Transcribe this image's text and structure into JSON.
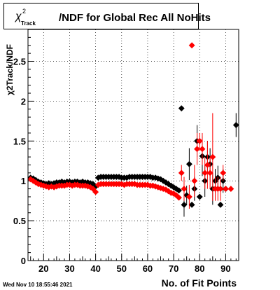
{
  "title": {
    "chi": "χ",
    "sup": "2",
    "sub": "Track",
    "text": "/NDF for Global Rec All NoHits"
  },
  "footer": {
    "date": "Wed Nov 10 18:55:46 2021"
  },
  "colors": {
    "series_black": "#000000",
    "series_red": "#ff0000",
    "frame": "#000000",
    "grid": "#000000"
  },
  "chart_data": {
    "type": "scatter",
    "title": "χ2Track/NDF for Global Rec All NoHits",
    "xlabel": "No. of Fit Points",
    "ylabel": "χ2Track/NDF",
    "xlim": [
      14,
      95
    ],
    "ylim": [
      0,
      2.9
    ],
    "grid": true,
    "x_ticks": [
      20,
      30,
      40,
      50,
      60,
      70,
      80,
      90
    ],
    "y_ticks": [
      0,
      0.5,
      1,
      1.5,
      2,
      2.5
    ],
    "y_tick_labels": [
      "0",
      "0.5",
      "1",
      "1.5",
      "2",
      "2.5"
    ],
    "series": [
      {
        "color": "#000000",
        "points": [
          [
            15,
            1.04
          ],
          [
            16,
            1.03
          ],
          [
            17,
            1.01
          ],
          [
            18,
            0.99
          ],
          [
            19,
            0.98
          ],
          [
            20,
            0.97
          ],
          [
            21,
            0.96
          ],
          [
            22,
            0.97
          ],
          [
            23,
            0.96
          ],
          [
            24,
            0.97
          ],
          [
            25,
            0.98
          ],
          [
            26,
            0.98
          ],
          [
            27,
            0.99
          ],
          [
            28,
            0.98
          ],
          [
            29,
            0.99
          ],
          [
            30,
            0.99
          ],
          [
            31,
            0.98
          ],
          [
            32,
            0.99
          ],
          [
            33,
            0.99
          ],
          [
            34,
            0.98
          ],
          [
            35,
            0.99
          ],
          [
            36,
            0.98
          ],
          [
            37,
            0.98
          ],
          [
            38,
            0.97
          ],
          [
            39,
            0.96
          ],
          [
            40,
            0.93
          ],
          [
            41,
            1.04
          ],
          [
            42,
            1.05
          ],
          [
            43,
            1.05
          ],
          [
            44,
            1.05
          ],
          [
            45,
            1.05
          ],
          [
            46,
            1.05
          ],
          [
            47,
            1.05
          ],
          [
            48,
            1.05
          ],
          [
            49,
            1.05
          ],
          [
            50,
            1.04
          ],
          [
            51,
            1.04
          ],
          [
            52,
            1.04
          ],
          [
            53,
            1.05
          ],
          [
            54,
            1.05
          ],
          [
            55,
            1.05
          ],
          [
            56,
            1.05
          ],
          [
            57,
            1.05
          ],
          [
            58,
            1.05
          ],
          [
            59,
            1.05
          ],
          [
            60,
            1.05
          ],
          [
            61,
            1.05
          ],
          [
            62,
            1.04
          ],
          [
            63,
            1.04
          ],
          [
            64,
            1.03
          ],
          [
            65,
            1.02
          ],
          [
            66,
            1.0
          ],
          [
            67,
            0.98
          ],
          [
            68,
            0.96
          ],
          [
            69,
            0.94
          ],
          [
            70,
            0.92
          ],
          [
            71,
            0.9
          ],
          [
            72,
            0.88
          ],
          [
            73,
            1.91
          ],
          [
            74,
            0.7
          ],
          [
            75,
            0.82
          ],
          [
            76,
            1.21
          ],
          [
            77,
            0.7
          ],
          [
            78,
            0.9
          ],
          [
            79,
            1.5
          ],
          [
            80,
            0.8
          ],
          [
            81,
            1.31
          ],
          [
            82,
            1.0
          ],
          [
            83,
            1.3
          ],
          [
            84,
            1.21
          ],
          [
            85,
            0.9
          ],
          [
            86,
            1.0
          ],
          [
            87,
            1.04
          ],
          [
            88,
            0.7
          ],
          [
            89,
            1.0
          ],
          [
            90,
            0.9
          ],
          [
            94,
            1.7
          ]
        ],
        "errors": [
          [
            73,
            0.0
          ],
          [
            74,
            0.15
          ],
          [
            75,
            0.12
          ],
          [
            76,
            0.2
          ],
          [
            77,
            0.0
          ],
          [
            78,
            0.15
          ],
          [
            79,
            0.2
          ],
          [
            80,
            0.0
          ],
          [
            81,
            0.25
          ],
          [
            82,
            0.2
          ],
          [
            83,
            0.2
          ],
          [
            84,
            0.2
          ],
          [
            85,
            0.2
          ],
          [
            86,
            0.15
          ],
          [
            87,
            0.15
          ],
          [
            88,
            0.0
          ],
          [
            89,
            0.15
          ],
          [
            90,
            0.0
          ],
          [
            94,
            0.15
          ]
        ]
      },
      {
        "color": "#ff0000",
        "points": [
          [
            15,
            1.02
          ],
          [
            16,
            1.0
          ],
          [
            17,
            0.98
          ],
          [
            18,
            0.96
          ],
          [
            19,
            0.95
          ],
          [
            20,
            0.94
          ],
          [
            21,
            0.93
          ],
          [
            22,
            0.92
          ],
          [
            23,
            0.93
          ],
          [
            24,
            0.92
          ],
          [
            25,
            0.93
          ],
          [
            26,
            0.94
          ],
          [
            27,
            0.94
          ],
          [
            28,
            0.94
          ],
          [
            29,
            0.95
          ],
          [
            30,
            0.95
          ],
          [
            31,
            0.94
          ],
          [
            32,
            0.95
          ],
          [
            33,
            0.95
          ],
          [
            34,
            0.94
          ],
          [
            35,
            0.94
          ],
          [
            36,
            0.94
          ],
          [
            37,
            0.93
          ],
          [
            38,
            0.92
          ],
          [
            39,
            0.9
          ],
          [
            40,
            0.86
          ],
          [
            41,
            0.95
          ],
          [
            42,
            0.96
          ],
          [
            43,
            0.96
          ],
          [
            44,
            0.96
          ],
          [
            45,
            0.96
          ],
          [
            46,
            0.96
          ],
          [
            47,
            0.96
          ],
          [
            48,
            0.96
          ],
          [
            49,
            0.96
          ],
          [
            50,
            0.96
          ],
          [
            51,
            0.95
          ],
          [
            52,
            0.96
          ],
          [
            53,
            0.96
          ],
          [
            54,
            0.96
          ],
          [
            55,
            0.96
          ],
          [
            56,
            0.95
          ],
          [
            57,
            0.95
          ],
          [
            58,
            0.95
          ],
          [
            59,
            0.95
          ],
          [
            60,
            0.95
          ],
          [
            61,
            0.94
          ],
          [
            62,
            0.94
          ],
          [
            63,
            0.93
          ],
          [
            64,
            0.92
          ],
          [
            65,
            0.91
          ],
          [
            66,
            0.9
          ],
          [
            67,
            0.89
          ],
          [
            68,
            0.87
          ],
          [
            69,
            0.85
          ],
          [
            70,
            0.84
          ],
          [
            71,
            0.82
          ],
          [
            72,
            0.79
          ],
          [
            73,
            1.1
          ],
          [
            74,
            0.9
          ],
          [
            76,
            0.8
          ],
          [
            77,
            2.7
          ],
          [
            78,
            1.0
          ],
          [
            79,
            1.4
          ],
          [
            80,
            1.5
          ],
          [
            81,
            1.4
          ],
          [
            82,
            1.1
          ],
          [
            83,
            1.2
          ],
          [
            84,
            1.1
          ],
          [
            85,
            1.3
          ],
          [
            86,
            0.9
          ],
          [
            87,
            0.9
          ],
          [
            88,
            0.9
          ],
          [
            89,
            1.1
          ],
          [
            90,
            0.9
          ],
          [
            92,
            0.9
          ]
        ],
        "errors": [
          [
            73,
            0.1
          ],
          [
            74,
            0.15
          ],
          [
            76,
            0.15
          ],
          [
            77,
            0.0
          ],
          [
            78,
            0.2
          ],
          [
            79,
            0.2
          ],
          [
            80,
            0.1
          ],
          [
            81,
            0.2
          ],
          [
            82,
            0.2
          ],
          [
            83,
            0.3
          ],
          [
            84,
            0.2
          ],
          [
            85,
            0.55
          ],
          [
            86,
            0.15
          ],
          [
            87,
            0.15
          ],
          [
            88,
            0.15
          ],
          [
            89,
            0.1
          ],
          [
            90,
            0.0
          ],
          [
            92,
            0.0
          ]
        ]
      }
    ]
  }
}
